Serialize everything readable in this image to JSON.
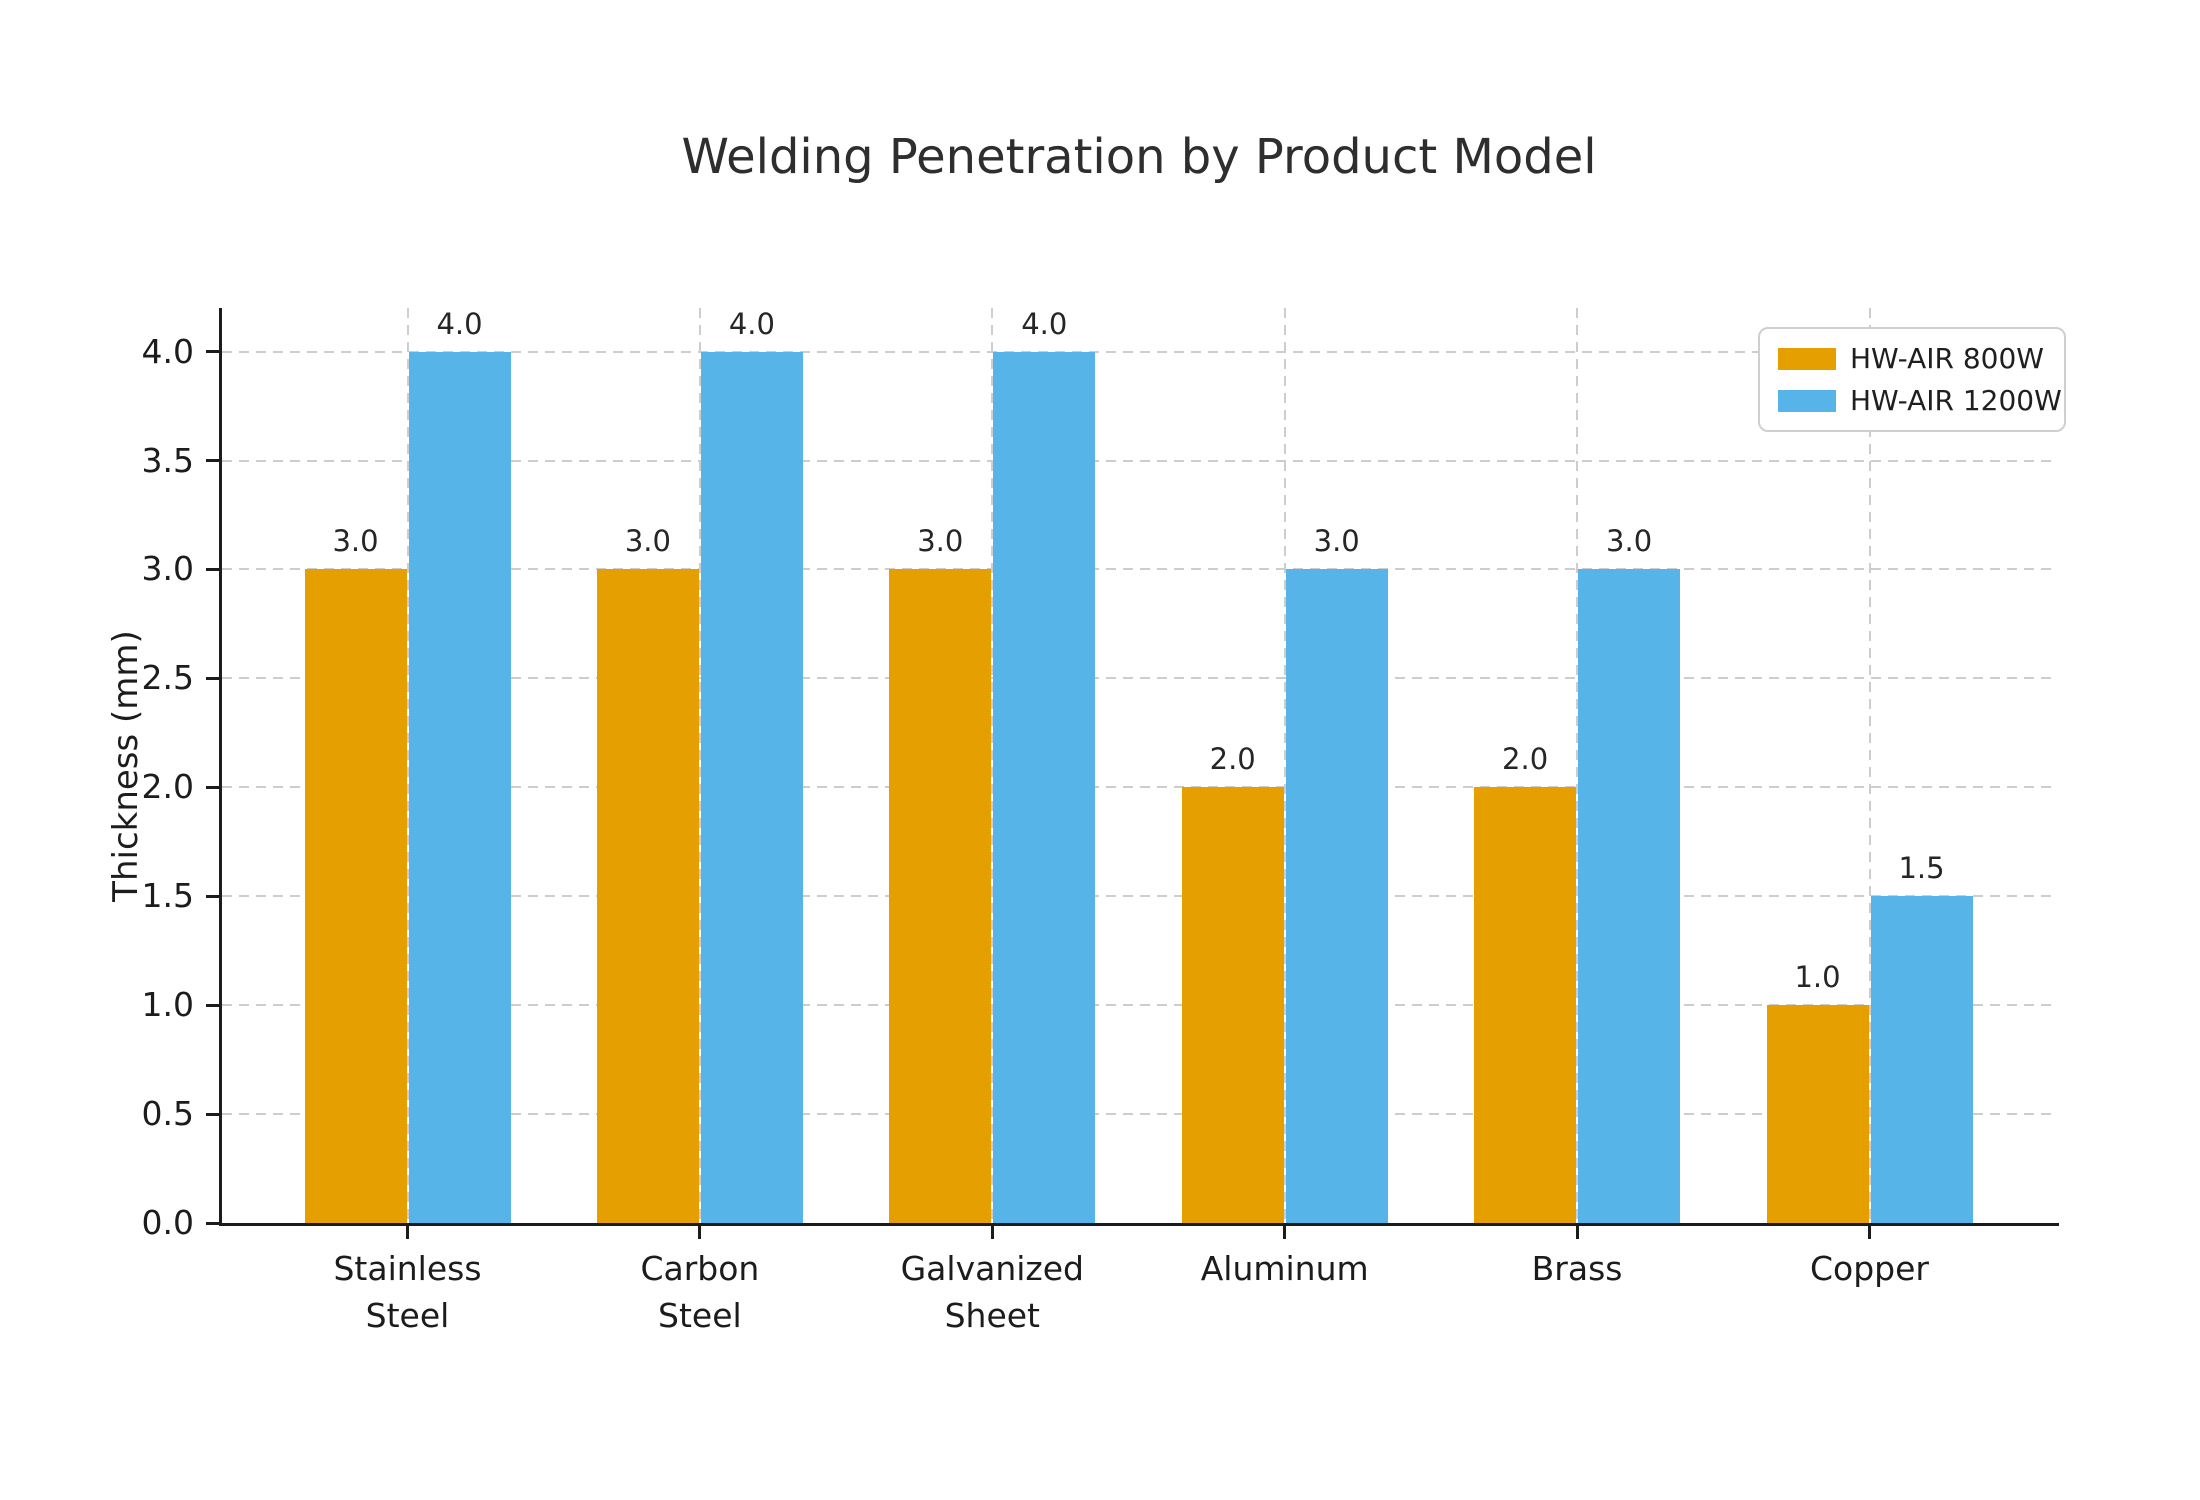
{
  "chart_data": {
    "type": "bar",
    "title": "Welding Penetration by Product Model",
    "xlabel": "",
    "ylabel": "Thickness (mm)",
    "categories": [
      "Stainless\nSteel",
      "Carbon\nSteel",
      "Galvanized\nSheet",
      "Aluminum",
      "Brass",
      "Copper"
    ],
    "series": [
      {
        "name": "HW-AIR 800W",
        "color": "#E69F00",
        "values": [
          3.0,
          3.0,
          3.0,
          2.0,
          2.0,
          1.0
        ]
      },
      {
        "name": "HW-AIR 1200W",
        "color": "#56B4E9",
        "values": [
          4.0,
          4.0,
          4.0,
          3.0,
          3.0,
          1.5
        ]
      }
    ],
    "bar_value_labels": {
      "HW-AIR 800W": [
        "3.0",
        "3.0",
        "3.0",
        "2.0",
        "2.0",
        "1.0"
      ],
      "HW-AIR 1200W": [
        "4.0",
        "4.0",
        "4.0",
        "3.0",
        "3.0",
        "1.5"
      ]
    },
    "ylim": [
      0.0,
      4.2
    ],
    "yticks": [
      "0.0",
      "0.5",
      "1.0",
      "1.5",
      "2.0",
      "2.5",
      "3.0",
      "3.5",
      "4.0"
    ],
    "grid": "dashed, horizontal and vertical",
    "legend_position": "upper right",
    "colors": {
      "series_800w": "#E69F00",
      "series_1200w": "#56B4E9",
      "grid": "#cdcdcd",
      "axis": "#1c1c1c",
      "text": "#262626"
    }
  }
}
